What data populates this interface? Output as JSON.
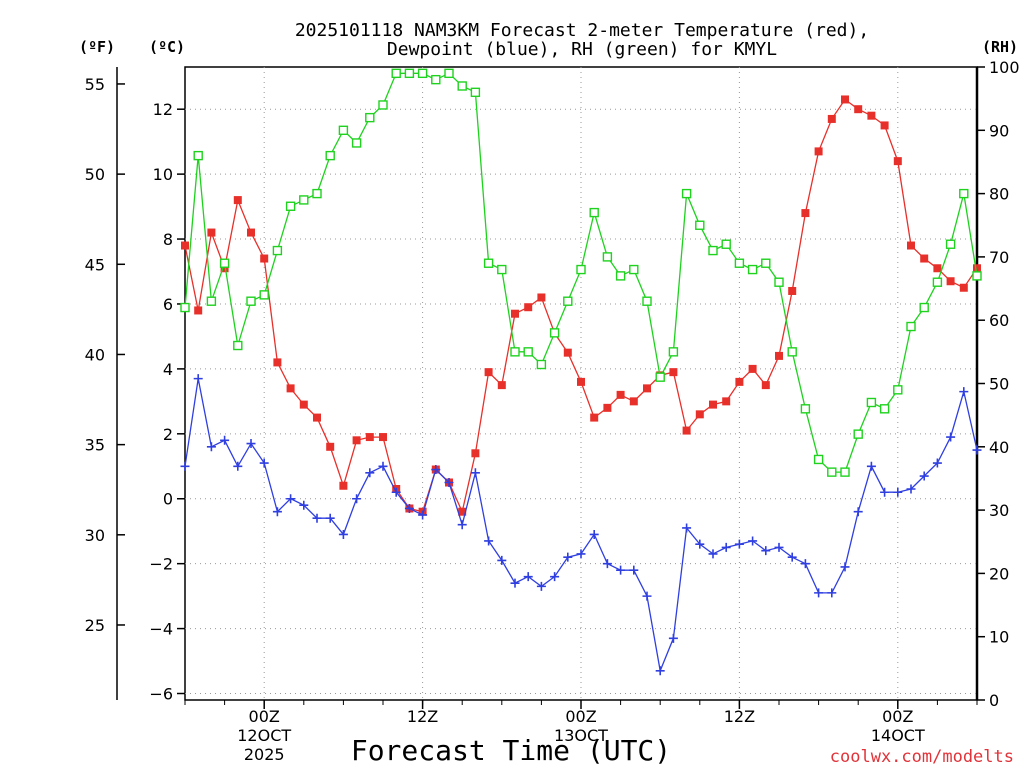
{
  "chart_data": {
    "type": "line",
    "title_line1": "2025101118 NAM3KM Forecast 2-meter Temperature (red),",
    "title_line2": "Dewpoint (blue), RH (green) for KMYL",
    "xlabel": "Forecast Time (UTC)",
    "unit_labels": {
      "fahrenheit": "(ºF)",
      "celsius": "(ºC)",
      "rh": "(RH)"
    },
    "watermark": "coolwx.com/modelts",
    "x_unit": "forecast hour (from 2025-10-11 18Z)",
    "xlim": [
      0,
      60
    ],
    "celsius_axis": {
      "ylim": [
        -6.2,
        13.3
      ],
      "ticks": [
        "−6",
        "−4",
        "−2",
        "0",
        "2",
        "4",
        "6",
        "8",
        "10",
        "12"
      ],
      "tick_values": [
        -6,
        -4,
        -2,
        0,
        2,
        4,
        6,
        8,
        10,
        12
      ]
    },
    "fahrenheit_axis": {
      "ticks": [
        "25",
        "30",
        "35",
        "40",
        "45",
        "50",
        "55"
      ],
      "tick_values": [
        25,
        30,
        35,
        40,
        45,
        50,
        55
      ]
    },
    "rh_axis": {
      "ylim": [
        0,
        100
      ],
      "ticks": [
        "0",
        "10",
        "20",
        "30",
        "40",
        "50",
        "60",
        "70",
        "80",
        "90",
        "100"
      ],
      "tick_values": [
        0,
        10,
        20,
        30,
        40,
        50,
        60,
        70,
        80,
        90,
        100
      ]
    },
    "x_ticks": [
      {
        "hour": 6,
        "label": "00Z",
        "sub1": "12OCT",
        "sub2": "2025"
      },
      {
        "hour": 18,
        "label": "12Z",
        "sub1": "",
        "sub2": ""
      },
      {
        "hour": 30,
        "label": "00Z",
        "sub1": "13OCT",
        "sub2": ""
      },
      {
        "hour": 42,
        "label": "12Z",
        "sub1": "",
        "sub2": ""
      },
      {
        "hour": 54,
        "label": "00Z",
        "sub1": "14OCT",
        "sub2": ""
      }
    ],
    "series": [
      {
        "name": "2-meter Temperature",
        "units": "°C",
        "color": "#e8302a",
        "marker": "filled-square",
        "x": [
          0,
          1,
          2,
          3,
          4,
          5,
          6,
          7,
          8,
          9,
          10,
          11,
          12,
          13,
          14,
          15,
          16,
          17,
          18,
          19,
          20,
          21,
          22,
          23,
          24,
          25,
          26,
          27,
          28,
          29,
          30,
          31,
          32,
          33,
          34,
          35,
          36,
          37,
          38,
          39,
          40,
          41,
          42,
          43,
          44,
          45,
          46,
          47,
          48,
          49,
          50,
          51,
          52,
          53,
          54,
          55,
          56,
          57,
          58,
          59,
          60
        ],
        "values": [
          7.8,
          5.8,
          8.2,
          7.1,
          9.2,
          8.2,
          7.4,
          4.2,
          3.4,
          2.9,
          2.5,
          1.6,
          0.4,
          1.8,
          1.9,
          1.9,
          0.3,
          -0.3,
          -0.4,
          0.9,
          0.5,
          -0.4,
          1.4,
          3.9,
          3.5,
          5.7,
          5.9,
          6.2,
          5.1,
          4.5,
          3.6,
          2.5,
          2.8,
          3.2,
          3.0,
          3.4,
          3.8,
          3.9,
          2.1,
          2.6,
          2.9,
          3.0,
          3.6,
          4.0,
          3.5,
          4.4,
          6.4,
          8.8,
          10.7,
          11.7,
          12.3,
          12.0,
          11.8,
          11.5,
          10.4,
          7.8,
          7.4,
          7.1,
          6.7,
          6.5,
          7.1
        ]
      },
      {
        "name": "Dewpoint",
        "units": "°C",
        "color": "#2f3fe0",
        "marker": "plus",
        "x": [
          0,
          1,
          2,
          3,
          4,
          5,
          6,
          7,
          8,
          9,
          10,
          11,
          12,
          13,
          14,
          15,
          16,
          17,
          18,
          19,
          20,
          21,
          22,
          23,
          24,
          25,
          26,
          27,
          28,
          29,
          30,
          31,
          32,
          33,
          34,
          35,
          36,
          37,
          38,
          39,
          40,
          41,
          42,
          43,
          44,
          45,
          46,
          47,
          48,
          49,
          50,
          51,
          52,
          53,
          54,
          55,
          56,
          57,
          58,
          59,
          60
        ],
        "values": [
          1.0,
          3.7,
          1.6,
          1.8,
          1.0,
          1.7,
          1.1,
          -0.4,
          0.0,
          -0.2,
          -0.6,
          -0.6,
          -1.1,
          0.0,
          0.8,
          1.0,
          0.2,
          -0.3,
          -0.5,
          0.9,
          0.5,
          -0.8,
          0.8,
          -1.3,
          -1.9,
          -2.6,
          -2.4,
          -2.7,
          -2.4,
          -1.8,
          -1.7,
          -1.1,
          -2.0,
          -2.2,
          -2.2,
          -3.0,
          -5.3,
          -4.3,
          -0.9,
          -1.4,
          -1.7,
          -1.5,
          -1.4,
          -1.3,
          -1.6,
          -1.5,
          -1.8,
          -2.0,
          -2.9,
          -2.9,
          -2.1,
          -0.4,
          1.0,
          0.2,
          0.2,
          0.3,
          0.7,
          1.1,
          1.9,
          3.3,
          1.5
        ]
      },
      {
        "name": "RH",
        "units": "%",
        "color": "#1ed21e",
        "marker": "open-square",
        "axis": "rh",
        "x": [
          0,
          1,
          2,
          3,
          4,
          5,
          6,
          7,
          8,
          9,
          10,
          11,
          12,
          13,
          14,
          15,
          16,
          17,
          18,
          19,
          20,
          21,
          22,
          23,
          24,
          25,
          26,
          27,
          28,
          29,
          30,
          31,
          32,
          33,
          34,
          35,
          36,
          37,
          38,
          39,
          40,
          41,
          42,
          43,
          44,
          45,
          46,
          47,
          48,
          49,
          50,
          51,
          52,
          53,
          54,
          55,
          56,
          57,
          58,
          59,
          60
        ],
        "values": [
          62,
          86,
          63,
          69,
          56,
          63,
          64,
          71,
          78,
          79,
          80,
          86,
          90,
          88,
          92,
          94,
          99,
          99,
          99,
          98,
          99,
          97,
          96,
          69,
          68,
          55,
          55,
          53,
          58,
          63,
          68,
          77,
          70,
          67,
          68,
          63,
          51,
          55,
          80,
          75,
          71,
          72,
          69,
          68,
          69,
          66,
          55,
          46,
          38,
          36,
          36,
          42,
          47,
          46,
          49,
          59,
          62,
          66,
          72,
          80,
          67
        ]
      }
    ]
  }
}
